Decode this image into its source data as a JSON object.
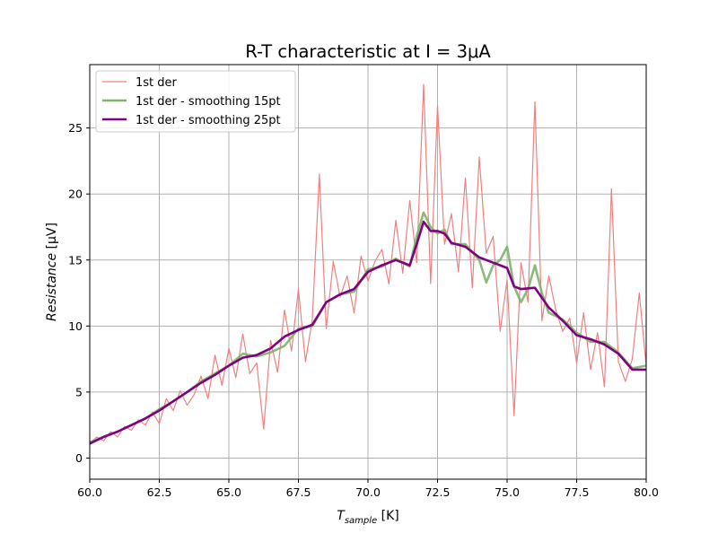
{
  "chart_data": {
    "type": "line",
    "title": "R-T characteristic at I = 3μA",
    "xlabel_main": "T",
    "xlabel_sub": "sample",
    "xlabel_unit": " [K]",
    "ylabel_main": "Resistance",
    "ylabel_unit": " [μV]",
    "xlim": [
      60.0,
      80.0
    ],
    "ylim": [
      -1.6,
      29.8
    ],
    "xticks": [
      60.0,
      62.5,
      65.0,
      67.5,
      70.0,
      72.5,
      75.0,
      77.5,
      80.0
    ],
    "xtick_labels": [
      "60.0",
      "62.5",
      "65.0",
      "67.5",
      "70.0",
      "72.5",
      "75.0",
      "77.5",
      "80.0"
    ],
    "yticks": [
      0,
      5,
      10,
      15,
      20,
      25
    ],
    "ytick_labels": [
      "0",
      "5",
      "10",
      "15",
      "20",
      "25"
    ],
    "grid": true,
    "legend_position": "top-left",
    "series": [
      {
        "name": "1st der",
        "color": "#f08080",
        "style": "thin",
        "x": [
          60.0,
          60.25,
          60.5,
          60.75,
          61.0,
          61.25,
          61.5,
          61.75,
          62.0,
          62.25,
          62.5,
          62.75,
          63.0,
          63.25,
          63.5,
          63.75,
          64.0,
          64.25,
          64.5,
          64.75,
          65.0,
          65.25,
          65.5,
          65.75,
          66.0,
          66.25,
          66.5,
          66.75,
          67.0,
          67.25,
          67.5,
          67.75,
          68.0,
          68.25,
          68.5,
          68.75,
          69.0,
          69.25,
          69.5,
          69.75,
          70.0,
          70.25,
          70.5,
          70.75,
          71.0,
          71.25,
          71.5,
          71.75,
          72.0,
          72.25,
          72.5,
          72.75,
          73.0,
          73.25,
          73.5,
          73.75,
          74.0,
          74.25,
          74.5,
          74.75,
          75.0,
          75.25,
          75.5,
          75.75,
          76.0,
          76.25,
          76.5,
          76.75,
          77.0,
          77.25,
          77.5,
          77.75,
          78.0,
          78.25,
          78.5,
          78.75,
          79.0,
          79.25,
          79.5,
          79.75,
          80.0
        ],
        "values": [
          1.1,
          1.6,
          1.3,
          2.0,
          1.6,
          2.4,
          2.1,
          2.9,
          2.5,
          3.5,
          2.6,
          4.5,
          3.6,
          5.1,
          4.0,
          4.8,
          6.2,
          4.5,
          7.8,
          5.5,
          8.3,
          6.1,
          9.4,
          6.4,
          7.2,
          2.2,
          8.9,
          6.5,
          11.2,
          8.1,
          12.8,
          7.3,
          10.5,
          21.5,
          9.8,
          14.9,
          12.2,
          13.8,
          11.0,
          15.3,
          13.4,
          14.9,
          15.8,
          13.2,
          18.0,
          14.0,
          19.5,
          14.8,
          28.3,
          13.2,
          26.7,
          16.2,
          18.5,
          14.1,
          21.2,
          12.9,
          22.8,
          15.5,
          16.8,
          9.6,
          13.5,
          3.2,
          14.8,
          11.8,
          27.0,
          10.4,
          13.8,
          11.2,
          9.6,
          10.6,
          7.2,
          11.0,
          6.7,
          9.5,
          5.4,
          20.4,
          7.3,
          5.8,
          7.5,
          12.5,
          7.0
        ]
      },
      {
        "name": "1st der - smoothing 15pt",
        "color": "#7cb46b",
        "style": "medium",
        "x": [
          60.0,
          60.5,
          61.0,
          61.5,
          62.0,
          62.5,
          63.0,
          63.5,
          64.0,
          64.5,
          65.0,
          65.5,
          66.0,
          66.5,
          67.0,
          67.5,
          68.0,
          68.5,
          69.0,
          69.5,
          70.0,
          70.5,
          71.0,
          71.5,
          71.75,
          72.0,
          72.25,
          72.5,
          72.75,
          73.0,
          73.5,
          74.0,
          74.25,
          74.5,
          74.75,
          75.0,
          75.25,
          75.5,
          75.75,
          76.0,
          76.25,
          76.5,
          77.0,
          77.5,
          78.0,
          78.5,
          79.0,
          79.5,
          80.0
        ],
        "values": [
          1.2,
          1.6,
          2.0,
          2.5,
          3.0,
          3.7,
          4.3,
          5.0,
          5.8,
          6.4,
          7.0,
          7.9,
          7.7,
          8.0,
          8.5,
          9.8,
          10.0,
          11.8,
          12.4,
          12.6,
          14.3,
          14.5,
          15.1,
          14.5,
          16.8,
          18.6,
          17.5,
          17.0,
          17.3,
          16.2,
          16.2,
          15.0,
          13.3,
          14.6,
          15.0,
          16.0,
          13.0,
          11.8,
          12.8,
          14.6,
          12.5,
          11.0,
          10.5,
          9.5,
          8.8,
          8.8,
          8.0,
          6.8,
          7.0
        ]
      },
      {
        "name": "1st der - smoothing 25pt",
        "color": "#800080",
        "style": "thick",
        "x": [
          60.0,
          60.5,
          61.0,
          61.5,
          62.0,
          62.5,
          63.0,
          63.5,
          64.0,
          64.5,
          65.0,
          65.5,
          66.0,
          66.5,
          67.0,
          67.5,
          68.0,
          68.5,
          69.0,
          69.5,
          70.0,
          70.5,
          71.0,
          71.5,
          71.75,
          72.0,
          72.25,
          72.5,
          72.75,
          73.0,
          73.5,
          74.0,
          74.5,
          75.0,
          75.25,
          75.5,
          76.0,
          76.5,
          77.0,
          77.5,
          78.0,
          78.5,
          79.0,
          79.5,
          80.0
        ],
        "values": [
          1.1,
          1.6,
          2.0,
          2.5,
          3.0,
          3.6,
          4.3,
          5.0,
          5.7,
          6.3,
          7.0,
          7.6,
          7.8,
          8.3,
          9.2,
          9.7,
          10.1,
          11.8,
          12.4,
          12.8,
          14.1,
          14.6,
          15.0,
          14.6,
          16.2,
          17.9,
          17.2,
          17.2,
          17.0,
          16.3,
          16.0,
          15.2,
          14.8,
          14.4,
          13.0,
          12.8,
          12.9,
          11.4,
          10.4,
          9.3,
          9.0,
          8.6,
          7.9,
          6.7,
          6.7
        ]
      }
    ]
  }
}
